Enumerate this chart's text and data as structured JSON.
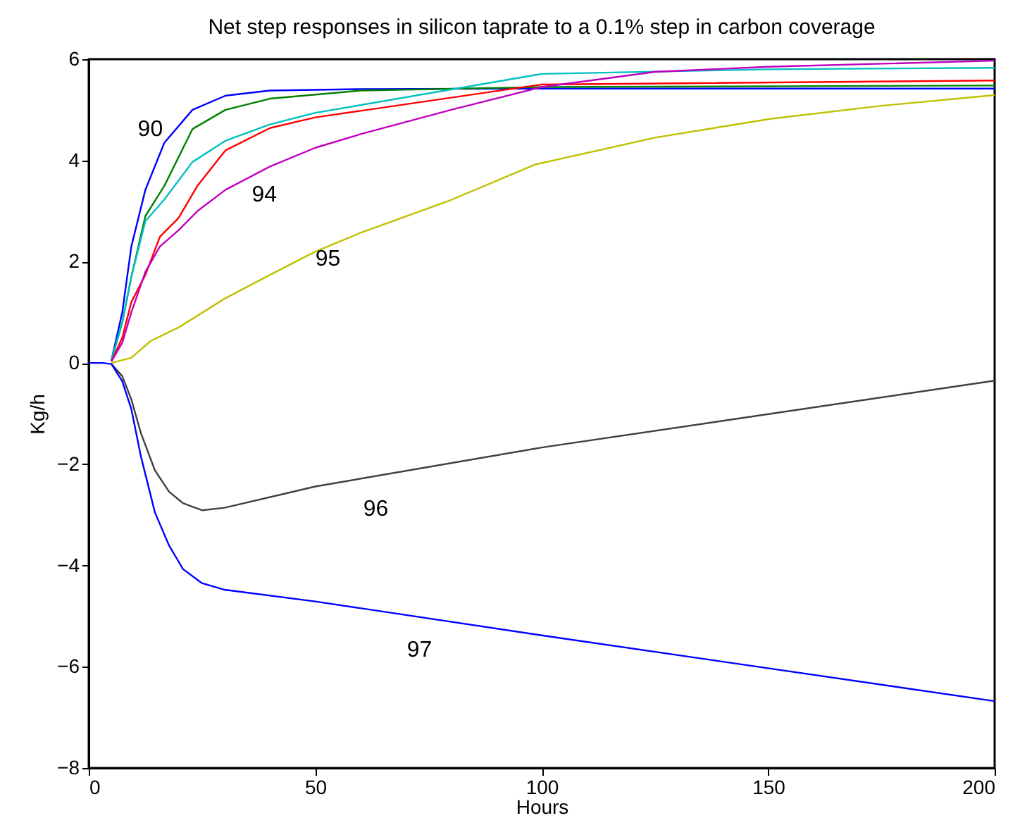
{
  "chart_data": {
    "type": "line",
    "title": "Net step responses in silicon taprate to a 0.1% step in carbon coverage",
    "xlabel": "Hours",
    "ylabel": "Kg/h",
    "xlim": [
      0,
      200
    ],
    "ylim": [
      -8,
      6
    ],
    "xticks": [
      0,
      50,
      100,
      150,
      200
    ],
    "yticks": [
      -8,
      -6,
      -4,
      -2,
      0,
      2,
      4,
      6
    ],
    "grid": false,
    "legend": false,
    "marker": "none",
    "line_style": "solid",
    "series": [
      {
        "name": "90",
        "color": "#0000ff",
        "x": [
          5,
          7.4,
          9.4,
          12.5,
          16.7,
          22.9,
          30.2,
          40,
          60,
          100,
          200
        ],
        "values": [
          0.05,
          1.0,
          2.3,
          3.42,
          4.35,
          5.0,
          5.28,
          5.38,
          5.41,
          5.42,
          5.42
        ]
      },
      {
        "color": "#008000",
        "x": [
          5,
          7.4,
          9.4,
          12.5,
          16.7,
          22.9,
          30.2,
          40,
          60,
          100,
          200
        ],
        "values": [
          0.05,
          0.8,
          1.7,
          2.9,
          3.5,
          4.62,
          5.0,
          5.22,
          5.38,
          5.45,
          5.48
        ]
      },
      {
        "color": "#00c0c0",
        "x": [
          5,
          7.4,
          9.4,
          12.5,
          16.7,
          22.9,
          30.2,
          40,
          50,
          100,
          150,
          200
        ],
        "values": [
          0.05,
          0.8,
          1.7,
          2.8,
          3.23,
          3.97,
          4.39,
          4.71,
          4.94,
          5.71,
          5.8,
          5.83
        ]
      },
      {
        "color": "#ff0000",
        "x": [
          5,
          7.4,
          9.4,
          12.5,
          15.7,
          19.8,
          24,
          30.2,
          40,
          50,
          100,
          200
        ],
        "values": [
          0.03,
          0.5,
          1.2,
          1.74,
          2.49,
          2.86,
          3.5,
          4.2,
          4.64,
          4.85,
          5.5,
          5.58
        ]
      },
      {
        "name": "94",
        "color": "#c000c0",
        "x": [
          5,
          7.4,
          9.4,
          12.5,
          15.7,
          19.8,
          24,
          30.2,
          40,
          50,
          60,
          80,
          100,
          125,
          150,
          200
        ],
        "values": [
          0.03,
          0.4,
          1.0,
          1.8,
          2.3,
          2.62,
          3.0,
          3.42,
          3.88,
          4.25,
          4.52,
          5.0,
          5.45,
          5.75,
          5.85,
          5.97
        ]
      },
      {
        "name": "95",
        "color": "#c0c000",
        "x": [
          5,
          9.4,
          13.6,
          20,
          30,
          40,
          50,
          60,
          80,
          98.6,
          125,
          150.4,
          175,
          200
        ],
        "values": [
          0,
          0.1,
          0.43,
          0.71,
          1.27,
          1.74,
          2.2,
          2.57,
          3.22,
          3.92,
          4.45,
          4.82,
          5.08,
          5.29
        ]
      },
      {
        "name": "96",
        "color": "#404040",
        "x": [
          5,
          7.4,
          9.4,
          11.5,
          14.6,
          17.7,
          20.8,
          25,
          30,
          50,
          100,
          200
        ],
        "values": [
          -0.02,
          -0.26,
          -0.72,
          -1.38,
          -2.12,
          -2.54,
          -2.77,
          -2.91,
          -2.86,
          -2.44,
          -1.67,
          -0.35
        ]
      },
      {
        "name": "97",
        "color": "#0000ff",
        "x": [
          0,
          3,
          5,
          7.4,
          9.4,
          11.5,
          14.6,
          17.7,
          20.8,
          25,
          30,
          50,
          100,
          200
        ],
        "values": [
          0,
          0,
          -0.02,
          -0.36,
          -0.91,
          -1.84,
          -2.95,
          -3.6,
          -4.07,
          -4.35,
          -4.48,
          -4.71,
          -5.38,
          -6.68
        ]
      }
    ]
  }
}
